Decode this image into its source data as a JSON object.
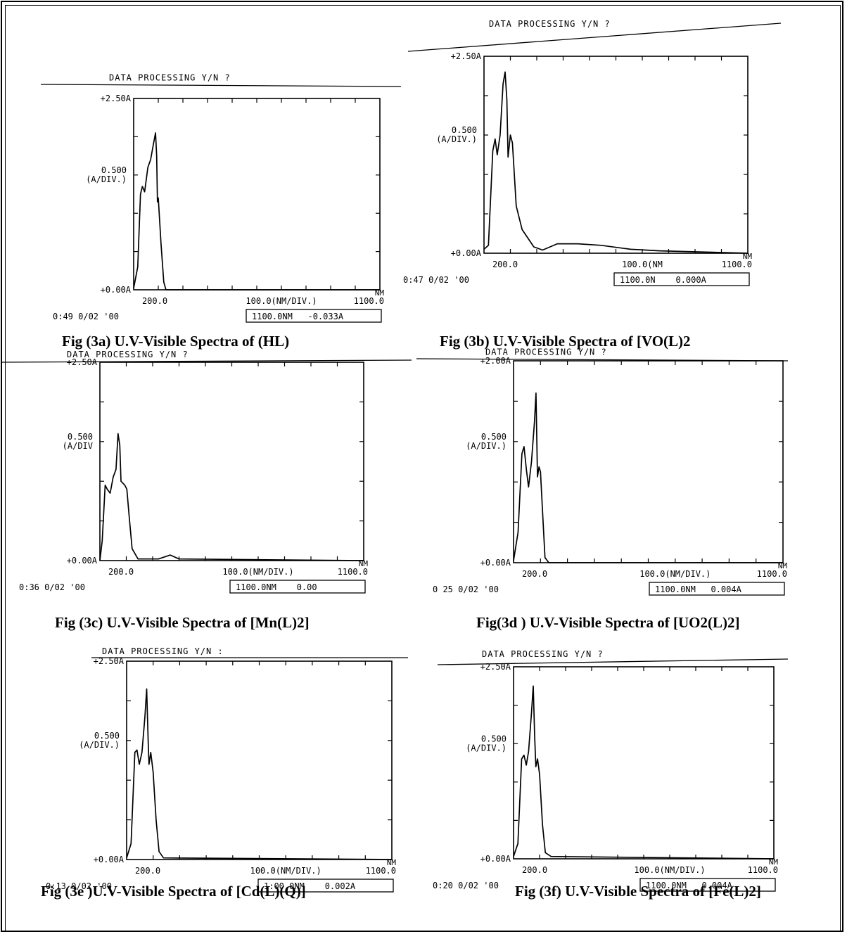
{
  "chart_data": [
    {
      "type": "line",
      "caption": "Fig (3a) U.V-Visible Spectra of (HL)",
      "header": "DATA PROCESSING Y/N ?",
      "ytop": "+2.50A",
      "ymid": "0.500",
      "yunit": "(A/DIV.)",
      "ybot": "+0.00A",
      "xleft": "200.0",
      "xmid": "100.0(NM/DIV.)",
      "xright": "1100.0",
      "xunit": "NM",
      "footer_left": "0:49  0/02 '00",
      "footer_box": "1100.0NM   -0.033A",
      "xlim": [
        200,
        1100
      ],
      "ylim": [
        0,
        2.5
      ],
      "points": [
        [
          200,
          0.02
        ],
        [
          215,
          0.3
        ],
        [
          225,
          1.25
        ],
        [
          232,
          1.35
        ],
        [
          240,
          1.28
        ],
        [
          252,
          1.6
        ],
        [
          262,
          1.7
        ],
        [
          272,
          1.9
        ],
        [
          280,
          2.05
        ],
        [
          284,
          1.75
        ],
        [
          287,
          1.15
        ],
        [
          290,
          1.2
        ],
        [
          300,
          0.6
        ],
        [
          310,
          0.1
        ],
        [
          318,
          0.0
        ],
        [
          1100,
          0.0
        ]
      ]
    },
    {
      "type": "line",
      "caption": "Fig (3b) U.V-Visible Spectra of [VO(L)2",
      "header": "DATA PROCESSING Y/N ?",
      "ytop": "+2.50A",
      "ymid": "0.500",
      "yunit": "(A/DIV.)",
      "ybot": "+0.00A",
      "xleft": "200.0",
      "xmid": "100.0(NM",
      "xright": "1100.0",
      "xunit": "NM",
      "footer_left": "0:47  0/02 '00",
      "footer_box": "1100.0N    0.000A",
      "xlim": [
        200,
        1100
      ],
      "ylim": [
        0,
        2.5
      ],
      "points": [
        [
          200,
          0.05
        ],
        [
          215,
          0.1
        ],
        [
          230,
          1.3
        ],
        [
          238,
          1.45
        ],
        [
          245,
          1.25
        ],
        [
          255,
          1.5
        ],
        [
          265,
          2.15
        ],
        [
          272,
          2.3
        ],
        [
          278,
          1.95
        ],
        [
          282,
          1.22
        ],
        [
          290,
          1.5
        ],
        [
          297,
          1.4
        ],
        [
          310,
          0.6
        ],
        [
          330,
          0.3
        ],
        [
          370,
          0.08
        ],
        [
          400,
          0.04
        ],
        [
          450,
          0.12
        ],
        [
          520,
          0.12
        ],
        [
          600,
          0.1
        ],
        [
          700,
          0.05
        ],
        [
          800,
          0.03
        ],
        [
          1100,
          0.0
        ]
      ]
    },
    {
      "type": "line",
      "caption": "Fig (3c) U.V-Visible Spectra of [Mn(L)2]",
      "header": "DATA PROCESSING Y/N ?",
      "ytop": "+2.50A",
      "ymid": "0.500",
      "yunit": "(A/DIV",
      "ybot": "+0.00A",
      "xleft": "200.0",
      "xmid": "100.0(NM/DIV.)",
      "xright": "1100.0",
      "xunit": "NM",
      "footer_left": "0:36  0/02 '00",
      "footer_box": "1100.0NM    0.00",
      "xlim": [
        200,
        1100
      ],
      "ylim": [
        0,
        2.5
      ],
      "points": [
        [
          200,
          0.0
        ],
        [
          208,
          0.25
        ],
        [
          218,
          0.95
        ],
        [
          225,
          0.9
        ],
        [
          235,
          0.85
        ],
        [
          245,
          1.05
        ],
        [
          255,
          1.15
        ],
        [
          262,
          1.6
        ],
        [
          268,
          1.45
        ],
        [
          272,
          1.0
        ],
        [
          285,
          0.95
        ],
        [
          292,
          0.9
        ],
        [
          300,
          0.55
        ],
        [
          310,
          0.15
        ],
        [
          330,
          0.02
        ],
        [
          400,
          0.02
        ],
        [
          440,
          0.07
        ],
        [
          470,
          0.02
        ],
        [
          1100,
          0.0
        ]
      ]
    },
    {
      "type": "line",
      "caption": "Fig(3d ) U.V-Visible Spectra of [UO2(L)2]",
      "header": "DATA PROCESSING Y/N ?",
      "ytop": "+2.00A",
      "ymid": "0.500",
      "yunit": "(A/DIV.)",
      "ybot": "+0.00A",
      "xleft": "200.0",
      "xmid": "100.0(NM/DIV.)",
      "xright": "1100.0",
      "xunit": "NM",
      "footer_left": "0 25  0/02 '00",
      "footer_box": "1100.0NM   0.004A",
      "xlim": [
        200,
        1100
      ],
      "ylim": [
        0,
        2.0
      ],
      "points": [
        [
          200,
          0.02
        ],
        [
          215,
          0.3
        ],
        [
          228,
          1.08
        ],
        [
          235,
          1.15
        ],
        [
          243,
          0.92
        ],
        [
          250,
          0.75
        ],
        [
          260,
          1.0
        ],
        [
          270,
          1.4
        ],
        [
          275,
          1.68
        ],
        [
          280,
          0.85
        ],
        [
          285,
          0.95
        ],
        [
          290,
          0.9
        ],
        [
          296,
          0.55
        ],
        [
          305,
          0.05
        ],
        [
          318,
          0.0
        ],
        [
          1100,
          0.0
        ]
      ]
    },
    {
      "type": "line",
      "caption": "Fig (3e )U.V-Visible Spectra of  [Cd(L)(Q)]",
      "header": "DATA PROCESSING Y/N :",
      "ytop": "+2.50A",
      "ymid": "0.500",
      "yunit": "(A/DIV.)",
      "ybot": "+0.00A",
      "xleft": "200.0",
      "xmid": "100.0(NM/DIV.)",
      "xright": "1100.0",
      "xunit": "NM",
      "footer_left": "0:13  0/02 '00",
      "footer_box": "1:00.0NM    0.002A",
      "xlim": [
        200,
        1100
      ],
      "ylim": [
        0,
        2.5
      ],
      "points": [
        [
          200,
          0.02
        ],
        [
          215,
          0.2
        ],
        [
          228,
          1.35
        ],
        [
          235,
          1.38
        ],
        [
          243,
          1.2
        ],
        [
          252,
          1.35
        ],
        [
          262,
          1.8
        ],
        [
          268,
          2.15
        ],
        [
          273,
          1.5
        ],
        [
          276,
          1.2
        ],
        [
          282,
          1.35
        ],
        [
          290,
          1.1
        ],
        [
          300,
          0.5
        ],
        [
          310,
          0.1
        ],
        [
          325,
          0.02
        ],
        [
          1100,
          0.0
        ]
      ]
    },
    {
      "type": "line",
      "caption": "Fig (3f) U.V-Visible Spectra of [Fe(L)2]",
      "header": "DATA PROCESSING Y/N ?",
      "ytop": "+2.50A",
      "ymid": "0.500",
      "yunit": "(A/DIV.)",
      "ybot": "+0.00A",
      "xleft": "200.0",
      "xmid": "100.0(NM/DIV.)",
      "xright": "1100.0",
      "xunit": "NM",
      "footer_left": "0:20  0/02 '00",
      "footer_box": "1100.0NM   0.004A",
      "xlim": [
        200,
        1100
      ],
      "ylim": [
        0,
        2.5
      ],
      "points": [
        [
          200,
          0.03
        ],
        [
          215,
          0.2
        ],
        [
          228,
          1.3
        ],
        [
          236,
          1.35
        ],
        [
          244,
          1.22
        ],
        [
          252,
          1.4
        ],
        [
          262,
          1.9
        ],
        [
          268,
          2.25
        ],
        [
          273,
          1.6
        ],
        [
          277,
          1.2
        ],
        [
          283,
          1.3
        ],
        [
          290,
          1.1
        ],
        [
          300,
          0.45
        ],
        [
          310,
          0.08
        ],
        [
          330,
          0.03
        ],
        [
          1100,
          0.0
        ]
      ]
    }
  ],
  "colors": {
    "ink": "#000000",
    "paper": "#ffffff"
  }
}
